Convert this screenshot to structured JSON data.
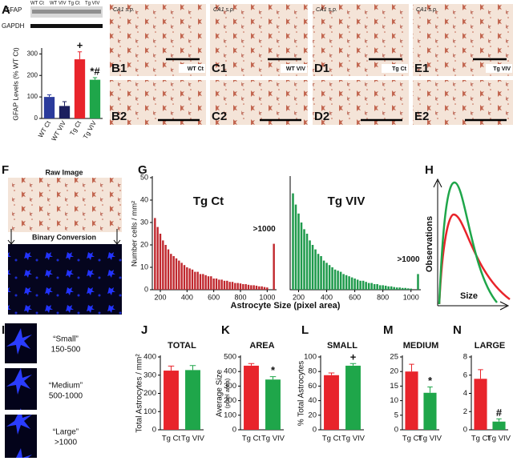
{
  "panel_labels": [
    "A",
    "B1",
    "C1",
    "D1",
    "E1",
    "B2",
    "C2",
    "D2",
    "E2",
    "F",
    "G",
    "H",
    "I",
    "J",
    "K",
    "L",
    "M",
    "N"
  ],
  "blot": {
    "rows": [
      "GFAP",
      "GAPDH"
    ],
    "lanes": [
      "WT Ct",
      "WT VIV",
      "Tg Ct",
      "Tg VIV"
    ]
  },
  "micrographs": {
    "region": "CA1 s.p.",
    "groups": [
      "WT Ct",
      "WT VIV",
      "Tg Ct",
      "Tg VIV"
    ]
  },
  "panel_f": {
    "top": "Raw Image",
    "bottom": "Binary Conversion"
  },
  "panel_h": {
    "ylabel": "Observations",
    "xlabel": "Size"
  },
  "panel_i": [
    {
      "name": "“Small”",
      "range": "150-500"
    },
    {
      "name": "“Medium”",
      "range": "500-1000"
    },
    {
      "name": "“Large”",
      "range": ">1000"
    }
  ],
  "histogram_xlabel": "Astrocyte Size (pixel area)",
  "chart_data": [
    {
      "type": "bar",
      "ylabel": "GFAP Levels (% WT Ct)",
      "categories": [
        "WT Ct",
        "WT VIV",
        "Tg Ct",
        "Tg VIV"
      ],
      "values": [
        100,
        58,
        275,
        180
      ],
      "errors": [
        10,
        20,
        35,
        10
      ],
      "colors": [
        "#2b3b9c",
        "#1c1f5e",
        "#e8242b",
        "#1fa64a"
      ],
      "ylim": [
        0,
        320
      ],
      "yticks": [
        0,
        100,
        200,
        300
      ],
      "annotations": [
        {
          "category": "Tg Ct",
          "text": "+"
        },
        {
          "category": "Tg VIV",
          "text": "*#"
        }
      ]
    },
    {
      "type": "bar",
      "title": "Tg Ct",
      "ylabel": "Number cells / mm²",
      "color": "#c0272d",
      "x": [
        160,
        180,
        200,
        220,
        240,
        260,
        280,
        300,
        320,
        340,
        360,
        380,
        400,
        420,
        440,
        460,
        480,
        500,
        520,
        540,
        560,
        580,
        600,
        620,
        640,
        660,
        680,
        700,
        720,
        740,
        760,
        780,
        800,
        820,
        840,
        860,
        880,
        900,
        920,
        940,
        960,
        980,
        1000,
        1050
      ],
      "values": [
        32,
        28,
        25,
        22,
        20,
        18,
        16,
        15,
        14,
        13,
        12,
        11,
        10,
        9.5,
        9,
        8,
        8,
        7,
        7,
        6.5,
        6,
        6,
        5,
        5,
        4.5,
        4.5,
        4,
        4,
        3.5,
        3.5,
        3,
        3,
        2.8,
        2.5,
        2.5,
        2.2,
        2,
        2,
        1.8,
        1.5,
        1.5,
        1.2,
        1,
        20.5
      ],
      "xlim": [
        140,
        1070
      ],
      "xticks": [
        200,
        400,
        600,
        800,
        1000
      ],
      "ylim": [
        0,
        50
      ],
      "yticks": [
        0,
        10,
        20,
        30,
        40,
        50
      ],
      "annotations": [
        {
          "x": 1050,
          "text": ">1000"
        }
      ]
    },
    {
      "type": "bar",
      "title": "Tg VIV",
      "color": "#1f9a4c",
      "x": [
        160,
        180,
        200,
        220,
        240,
        260,
        280,
        300,
        320,
        340,
        360,
        380,
        400,
        420,
        440,
        460,
        480,
        500,
        520,
        540,
        560,
        580,
        600,
        620,
        640,
        660,
        680,
        700,
        720,
        740,
        760,
        780,
        800,
        820,
        840,
        860,
        880,
        900,
        920,
        940,
        960,
        980,
        1000,
        1050
      ],
      "values": [
        43,
        38,
        34,
        30,
        27,
        25,
        22,
        20,
        18,
        16,
        15,
        13,
        12,
        11,
        10,
        9,
        8.5,
        8,
        7,
        6.5,
        6,
        5.5,
        5,
        4.5,
        4,
        4,
        3.5,
        3,
        3,
        2.5,
        2.5,
        2,
        2,
        1.8,
        1.5,
        1.5,
        1.2,
        1,
        1,
        0.8,
        0.8,
        0.6,
        0.5,
        7
      ],
      "xlim": [
        140,
        1070
      ],
      "xticks": [
        200,
        400,
        600,
        800,
        1000
      ],
      "ylim": [
        0,
        50
      ],
      "annotations": [
        {
          "x": 1050,
          "text": ">1000"
        }
      ]
    },
    {
      "type": "bar",
      "title": "TOTAL",
      "ylabel": "Total Astrocytes / mm²",
      "categories": [
        "Tg Ct",
        "Tg VIV"
      ],
      "values": [
        325,
        328
      ],
      "errors": [
        25,
        25
      ],
      "colors": [
        "#e8242b",
        "#1fa64a"
      ],
      "ylim": [
        0,
        400
      ],
      "yticks": [
        0,
        100,
        200,
        300,
        400
      ]
    },
    {
      "type": "bar",
      "title": "AREA",
      "ylabel": "Average Size",
      "ylabel2": "(pixel area)",
      "categories": [
        "Tg Ct",
        "Tg VIV"
      ],
      "values": [
        440,
        345
      ],
      "errors": [
        15,
        20
      ],
      "colors": [
        "#e8242b",
        "#1fa64a"
      ],
      "ylim": [
        0,
        500
      ],
      "yticks": [
        0,
        100,
        200,
        300,
        400,
        500
      ],
      "annotations": [
        {
          "category": "Tg VIV",
          "text": "*"
        }
      ]
    },
    {
      "type": "bar",
      "title": "SMALL",
      "ylabel": "% Total Astrocytes",
      "categories": [
        "Tg Ct",
        "Tg VIV"
      ],
      "values": [
        75,
        88
      ],
      "errors": [
        3,
        3
      ],
      "colors": [
        "#e8242b",
        "#1fa64a"
      ],
      "ylim": [
        0,
        100
      ],
      "yticks": [
        0,
        20,
        40,
        60,
        80,
        100
      ],
      "annotations": [
        {
          "category": "Tg VIV",
          "text": "+"
        }
      ]
    },
    {
      "type": "bar",
      "title": "MEDIUM",
      "categories": [
        "Tg Ct",
        "Tg VIV"
      ],
      "values": [
        20,
        12.7
      ],
      "errors": [
        2.5,
        2
      ],
      "colors": [
        "#e8242b",
        "#1fa64a"
      ],
      "ylim": [
        0,
        25
      ],
      "yticks": [
        0,
        5,
        10,
        15,
        20,
        25
      ],
      "annotations": [
        {
          "category": "Tg VIV",
          "text": "*"
        }
      ]
    },
    {
      "type": "bar",
      "title": "LARGE",
      "categories": [
        "Tg Ct",
        "Tg VIV"
      ],
      "values": [
        5.6,
        0.9
      ],
      "errors": [
        1,
        0.3
      ],
      "colors": [
        "#e8242b",
        "#1fa64a"
      ],
      "ylim": [
        0,
        8
      ],
      "yticks": [
        0,
        2,
        4,
        6,
        8
      ],
      "annotations": [
        {
          "category": "Tg VIV",
          "text": "#"
        }
      ]
    }
  ]
}
